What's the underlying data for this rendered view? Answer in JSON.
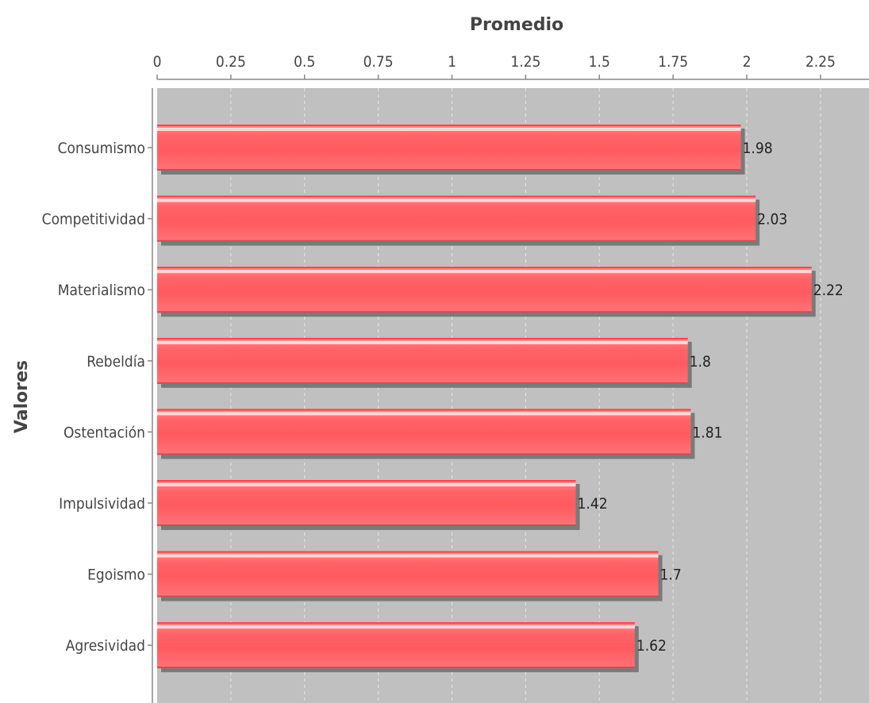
{
  "chart_data": {
    "type": "bar",
    "orientation": "horizontal",
    "xlabel": "Promedio",
    "ylabel": "Valores",
    "xlim": [
      0,
      2.4
    ],
    "ticks": [
      0,
      0.25,
      0.5,
      0.75,
      1,
      1.25,
      1.5,
      1.75,
      2,
      2.25
    ],
    "tick_labels": [
      "0",
      "0.25",
      "0.5",
      "0.75",
      "1",
      "1.25",
      "1.5",
      "1.75",
      "2",
      "2.25"
    ],
    "categories": [
      "Consumismo",
      "Competitividad",
      "Materialismo",
      "Rebeldía",
      "Ostentación",
      "Impulsividad",
      "Egoismo",
      "Agresividad"
    ],
    "values": [
      1.98,
      2.03,
      2.22,
      1.8,
      1.81,
      1.42,
      1.7,
      1.62
    ],
    "value_labels": [
      "1.98",
      "2.03",
      "2.22",
      "1.8",
      "1.81",
      "1.42",
      "1.7",
      "1.62"
    ],
    "grid": true,
    "colors": {
      "bar": "#ff5a5f",
      "bar_highlight": "#ffd6d6",
      "bar_shadow": "#7a7a7a",
      "plot_background": "#c0c0c0",
      "gridline": "#e6e6e6"
    }
  }
}
